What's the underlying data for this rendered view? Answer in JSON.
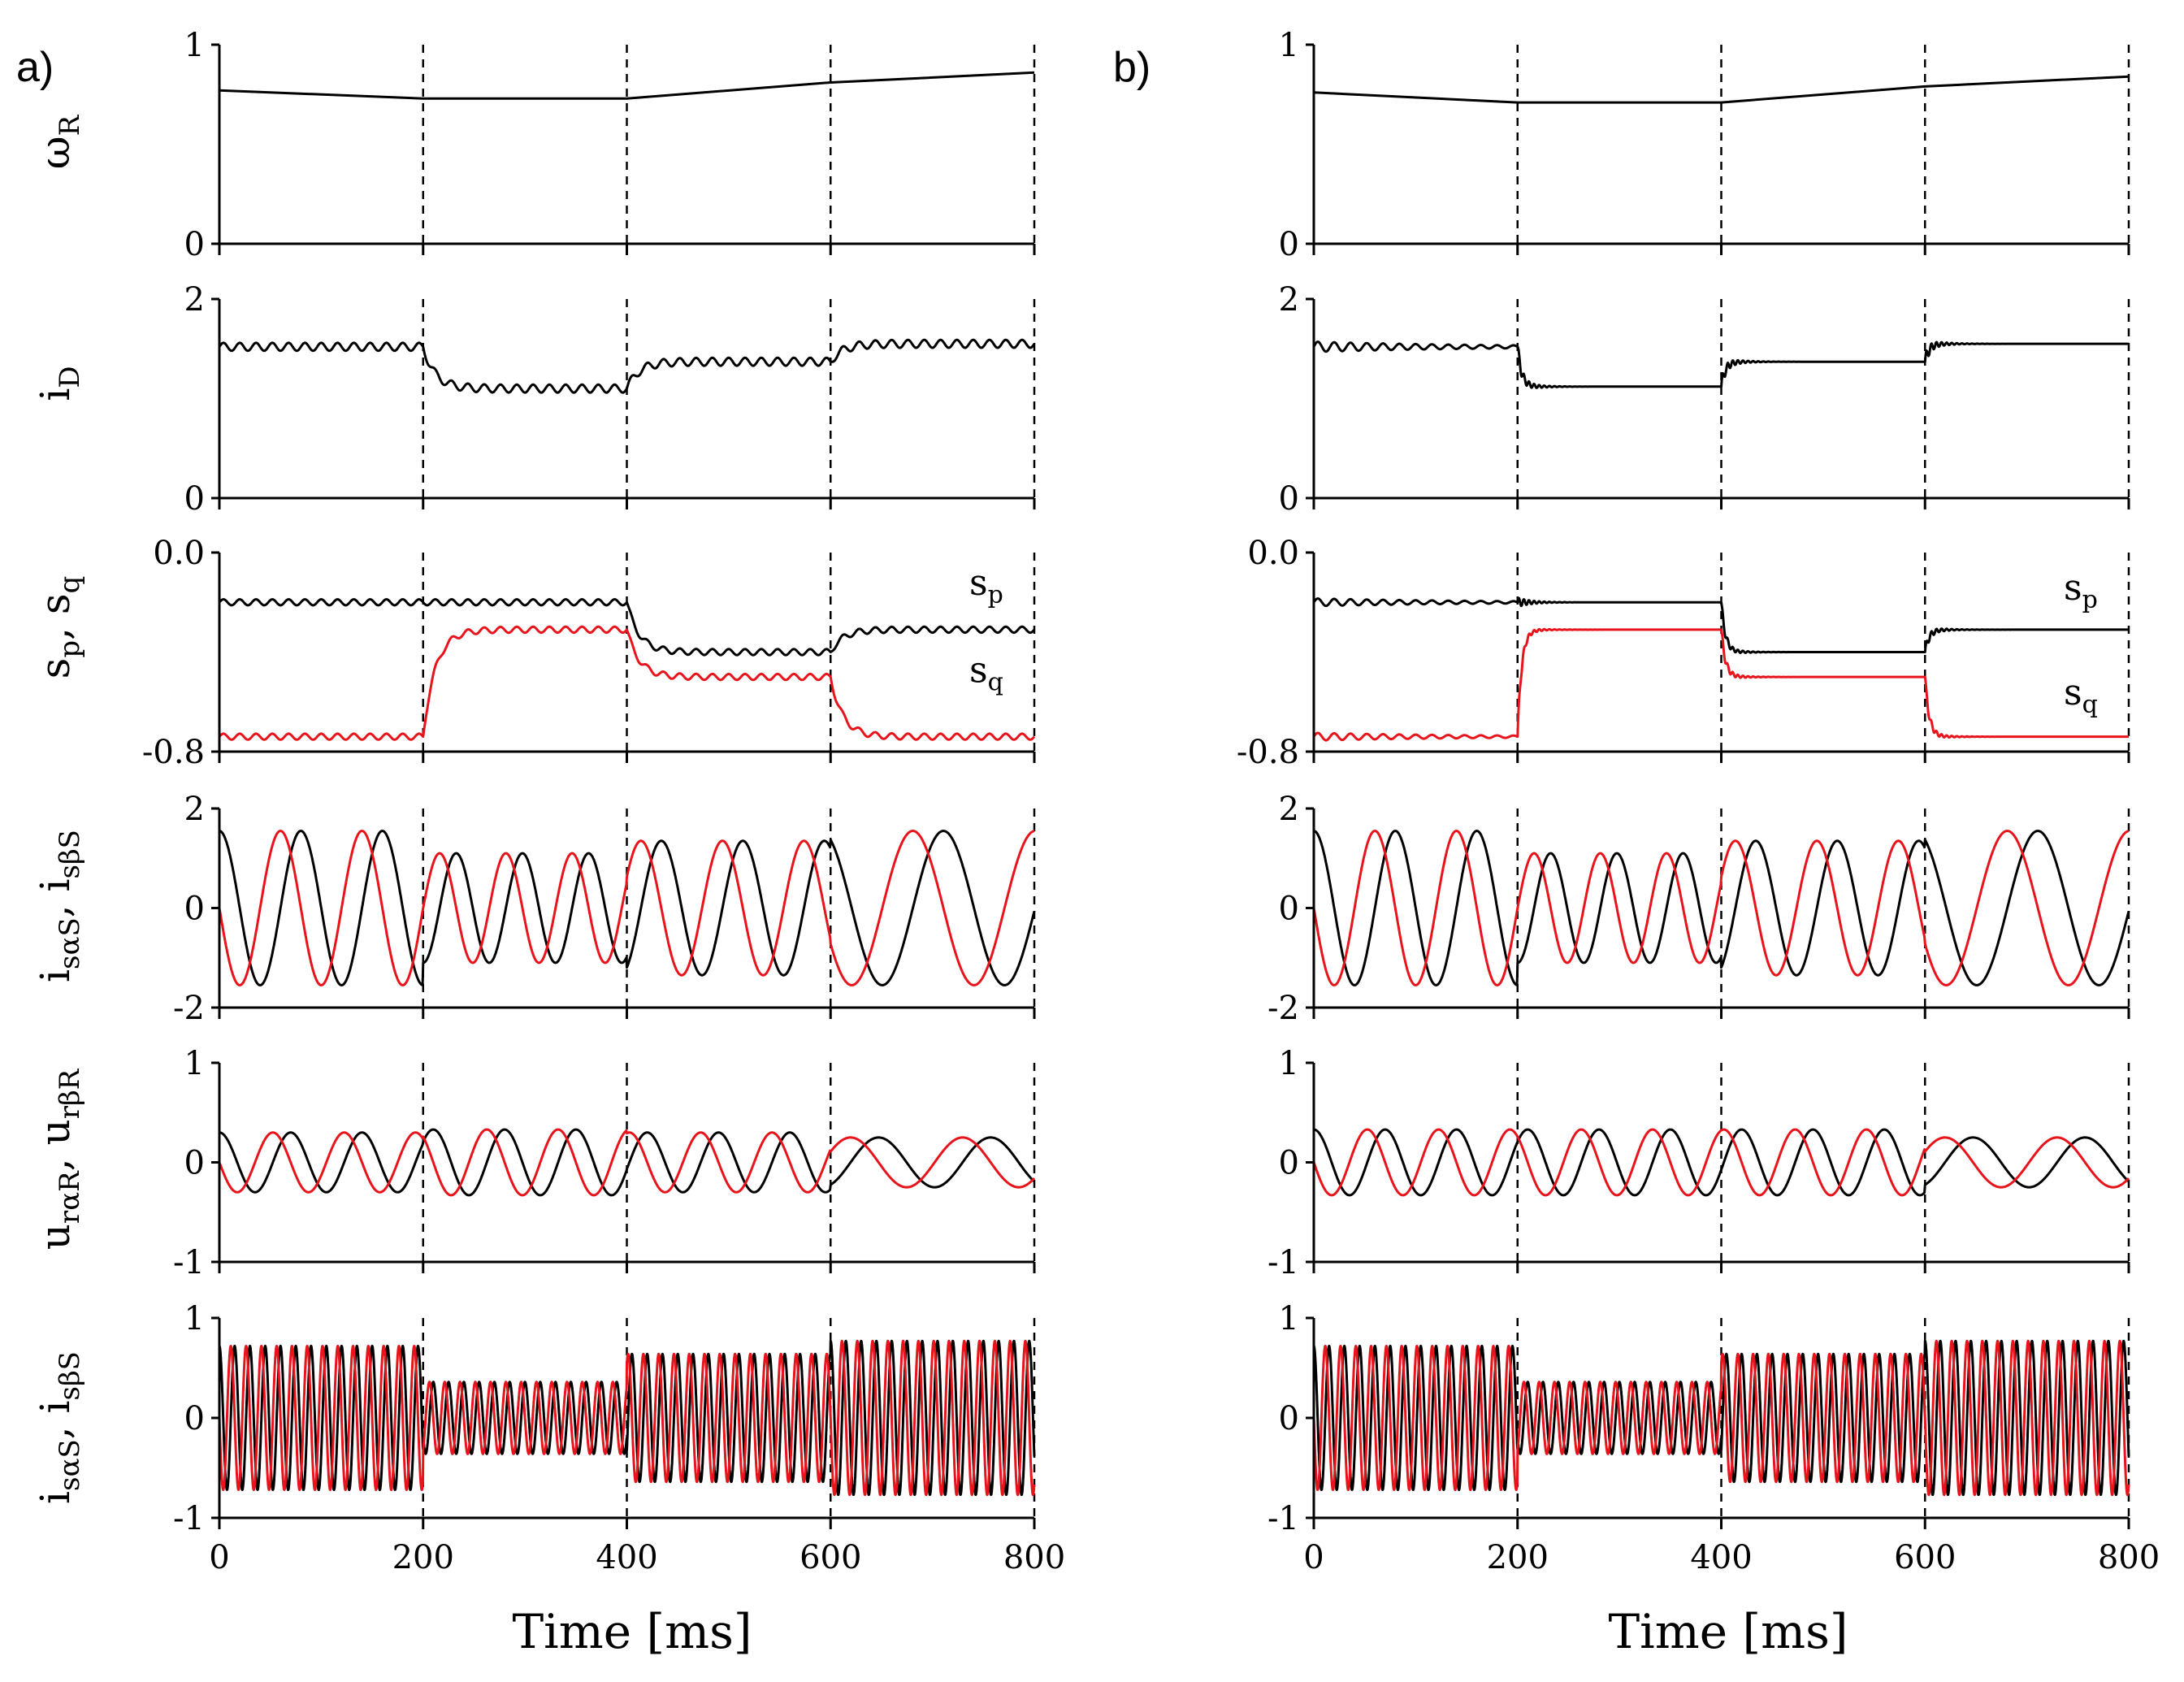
{
  "colors": {
    "black": "#000000",
    "red": "#e8141c"
  },
  "figure": {
    "xlabel": "Time [ms]",
    "columns": [
      {
        "label": "a)"
      },
      {
        "label": "b)"
      }
    ]
  },
  "chart_data": [
    {
      "column": "a",
      "type": "line",
      "ylabel": "ωR",
      "ylim": [
        0,
        1
      ],
      "yticks": [
        "1",
        "0"
      ],
      "xlim": [
        0,
        800
      ],
      "xticks": [
        "0",
        "200",
        "400",
        "600",
        "800"
      ],
      "vlines": [
        200,
        400,
        600,
        800
      ],
      "series": [
        {
          "name": "ωR",
          "color": "#000000",
          "x": [
            0,
            200,
            400,
            600,
            800
          ],
          "y": [
            0.77,
            0.73,
            0.73,
            0.81,
            0.86
          ]
        }
      ]
    },
    {
      "column": "a",
      "type": "line",
      "ylabel": "iD",
      "ylim": [
        0,
        2
      ],
      "yticks": [
        "2",
        "0"
      ],
      "xlim": [
        0,
        800
      ],
      "vlines": [
        200,
        400,
        600,
        800
      ],
      "series": [
        {
          "name": "iD",
          "color": "#000000",
          "steady_levels": [
            1.52,
            1.1,
            1.37,
            1.55
          ],
          "ripple_amplitude": 0.04
        }
      ]
    },
    {
      "column": "a",
      "type": "line",
      "ylabel": "sp, sq",
      "ylim": [
        -0.8,
        0.0
      ],
      "yticks": [
        "0.0",
        "-0.8"
      ],
      "xlim": [
        0,
        800
      ],
      "vlines": [
        200,
        400,
        600,
        800
      ],
      "annotations": [
        {
          "text": "sp",
          "series": "sp"
        },
        {
          "text": "sq",
          "series": "sq"
        }
      ],
      "series": [
        {
          "name": "sp",
          "color": "#000000",
          "steady_levels": [
            -0.2,
            -0.2,
            -0.4,
            -0.31
          ]
        },
        {
          "name": "sq",
          "color": "#e8141c",
          "steady_levels": [
            -0.74,
            -0.31,
            -0.5,
            -0.74
          ]
        }
      ]
    },
    {
      "column": "a",
      "type": "line",
      "ylabel": "isαS, isβS",
      "ylim": [
        -2,
        2
      ],
      "yticks": [
        "2",
        "0",
        "-2"
      ],
      "xlim": [
        0,
        800
      ],
      "vlines": [
        200,
        400,
        600,
        800
      ],
      "series": [
        {
          "name": "isαS",
          "color": "#000000",
          "amplitude": [
            1.55,
            1.1,
            1.35,
            1.55
          ],
          "period_ms": [
            80,
            65,
            80,
            120
          ]
        },
        {
          "name": "isβS",
          "color": "#e8141c",
          "amplitude": [
            1.55,
            1.1,
            1.35,
            1.55
          ],
          "period_ms": [
            80,
            65,
            80,
            120
          ]
        }
      ]
    },
    {
      "column": "a",
      "type": "line",
      "ylabel": "urαR, urβR",
      "ylim": [
        -1,
        1
      ],
      "yticks": [
        "1",
        "0",
        "-1"
      ],
      "xlim": [
        0,
        800
      ],
      "vlines": [
        200,
        400,
        600,
        800
      ],
      "series": [
        {
          "name": "urαR",
          "color": "#000000",
          "amplitude": [
            0.3,
            0.33,
            0.3,
            0.25
          ],
          "period_ms": [
            70,
            70,
            70,
            110
          ]
        },
        {
          "name": "urβR",
          "color": "#e8141c",
          "amplitude": [
            0.3,
            0.33,
            0.3,
            0.25
          ],
          "period_ms": [
            70,
            70,
            70,
            110
          ]
        }
      ]
    },
    {
      "column": "a",
      "type": "line",
      "ylabel": "isαS, isβS",
      "ylim": [
        -1,
        1
      ],
      "yticks": [
        "1",
        "0",
        "-1"
      ],
      "xlim": [
        0,
        800
      ],
      "xticks": [
        "0",
        "200",
        "400",
        "600",
        "800"
      ],
      "vlines": [
        200,
        400,
        600,
        800
      ],
      "series": [
        {
          "name": "isαS",
          "color": "#000000",
          "amplitude": [
            0.72,
            0.36,
            0.64,
            0.77
          ],
          "period_ms": 15
        },
        {
          "name": "isβS",
          "color": "#e8141c",
          "amplitude": [
            0.72,
            0.36,
            0.64,
            0.77
          ],
          "period_ms": 15
        }
      ]
    },
    {
      "column": "b",
      "type": "line",
      "ylabel": "",
      "ylim": [
        0,
        1
      ],
      "yticks": [
        "1",
        "0"
      ],
      "xlim": [
        0,
        800
      ],
      "xticks": [
        "0",
        "200",
        "400",
        "600",
        "800"
      ],
      "vlines": [
        200,
        400,
        600,
        800
      ],
      "series": [
        {
          "name": "ωR",
          "color": "#000000",
          "x": [
            0,
            200,
            400,
            600,
            800
          ],
          "y": [
            0.76,
            0.71,
            0.71,
            0.79,
            0.84
          ]
        }
      ]
    },
    {
      "column": "b",
      "type": "line",
      "ylabel": "",
      "ylim": [
        0,
        2
      ],
      "yticks": [
        "2",
        "0"
      ],
      "xlim": [
        0,
        800
      ],
      "vlines": [
        200,
        400,
        600,
        800
      ],
      "series": [
        {
          "name": "iD",
          "color": "#000000",
          "steady_levels": [
            1.52,
            1.12,
            1.37,
            1.55
          ],
          "ripple_amplitude": 0.04
        }
      ]
    },
    {
      "column": "b",
      "type": "line",
      "ylabel": "",
      "ylim": [
        -0.8,
        0.0
      ],
      "yticks": [
        "0.0",
        "-0.8"
      ],
      "xlim": [
        0,
        800
      ],
      "vlines": [
        200,
        400,
        600,
        800
      ],
      "annotations": [
        {
          "text": "sp",
          "series": "sp"
        },
        {
          "text": "sq",
          "series": "sq"
        }
      ],
      "series": [
        {
          "name": "sp",
          "color": "#000000",
          "steady_levels": [
            -0.2,
            -0.2,
            -0.4,
            -0.31
          ]
        },
        {
          "name": "sq",
          "color": "#e8141c",
          "steady_levels": [
            -0.74,
            -0.31,
            -0.5,
            -0.74
          ]
        }
      ]
    },
    {
      "column": "b",
      "type": "line",
      "ylabel": "",
      "ylim": [
        -2,
        2
      ],
      "yticks": [
        "2",
        "0",
        "-2"
      ],
      "xlim": [
        0,
        800
      ],
      "vlines": [
        200,
        400,
        600,
        800
      ],
      "series": [
        {
          "name": "isαS",
          "color": "#000000",
          "amplitude": [
            1.55,
            1.1,
            1.35,
            1.55
          ],
          "period_ms": [
            80,
            65,
            80,
            120
          ]
        },
        {
          "name": "isβS",
          "color": "#e8141c",
          "amplitude": [
            1.55,
            1.1,
            1.35,
            1.55
          ],
          "period_ms": [
            80,
            65,
            80,
            120
          ]
        }
      ]
    },
    {
      "column": "b",
      "type": "line",
      "ylabel": "",
      "ylim": [
        -1,
        1
      ],
      "yticks": [
        "1",
        "0",
        "-1"
      ],
      "xlim": [
        0,
        800
      ],
      "vlines": [
        200,
        400,
        600,
        800
      ],
      "series": [
        {
          "name": "urαR",
          "color": "#000000",
          "amplitude": [
            0.33,
            0.33,
            0.33,
            0.25
          ],
          "period_ms": [
            70,
            70,
            70,
            110
          ]
        },
        {
          "name": "urβR",
          "color": "#e8141c",
          "amplitude": [
            0.33,
            0.33,
            0.33,
            0.25
          ],
          "period_ms": [
            70,
            70,
            70,
            110
          ]
        }
      ]
    },
    {
      "column": "b",
      "type": "line",
      "ylabel": "",
      "ylim": [
        -1,
        1
      ],
      "yticks": [
        "1",
        "0",
        "-1"
      ],
      "xlim": [
        0,
        800
      ],
      "xticks": [
        "0",
        "200",
        "400",
        "600",
        "800"
      ],
      "vlines": [
        200,
        400,
        600,
        800
      ],
      "series": [
        {
          "name": "isαS",
          "color": "#000000",
          "amplitude": [
            0.72,
            0.36,
            0.64,
            0.77
          ],
          "period_ms": 15
        },
        {
          "name": "isβS",
          "color": "#e8141c",
          "amplitude": [
            0.72,
            0.36,
            0.64,
            0.77
          ],
          "period_ms": 15
        }
      ]
    }
  ]
}
